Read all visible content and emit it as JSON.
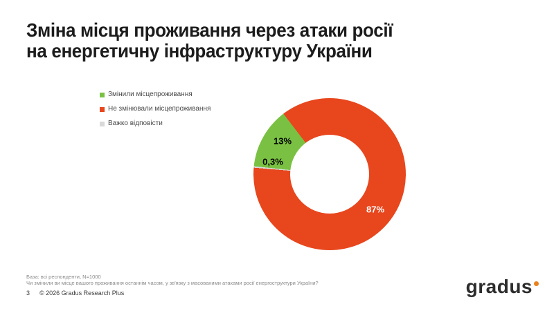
{
  "slide": {
    "title_line1": "Зміна місця проживання через атаки росії",
    "title_line2": "на енергетичну інфраструктуру України",
    "footnote_line1": "База: всі респонденти, N=1000",
    "footnote_line2": "Чи змінили ви місце вашого проживання останнім часом, у зв'язку з масованими атаками росії енергоструктури України?",
    "page_number": "3",
    "copyright": "© 2026 Gradus Research Plus",
    "logo_text": "gradus"
  },
  "chart_data": {
    "type": "pie",
    "subtype": "donut",
    "title": "Зміна місця проживання через атаки росії на енергетичну інфраструктуру України",
    "categories": [
      "Змінили місцепроживання",
      "Не змінювали місцепроживання",
      "Важко відповісти"
    ],
    "values": [
      13,
      87,
      0.3
    ],
    "value_labels": [
      "13%",
      "87%",
      "0,3%"
    ],
    "colors": [
      "#7ac143",
      "#e8461d",
      "#d9d9d9"
    ],
    "legend_position": "left",
    "donut_hole_ratio": 0.52
  },
  "colors": {
    "accent_orange": "#e8821e",
    "title_text": "#1c1c1c",
    "footnote_text": "#8a8a8a"
  }
}
